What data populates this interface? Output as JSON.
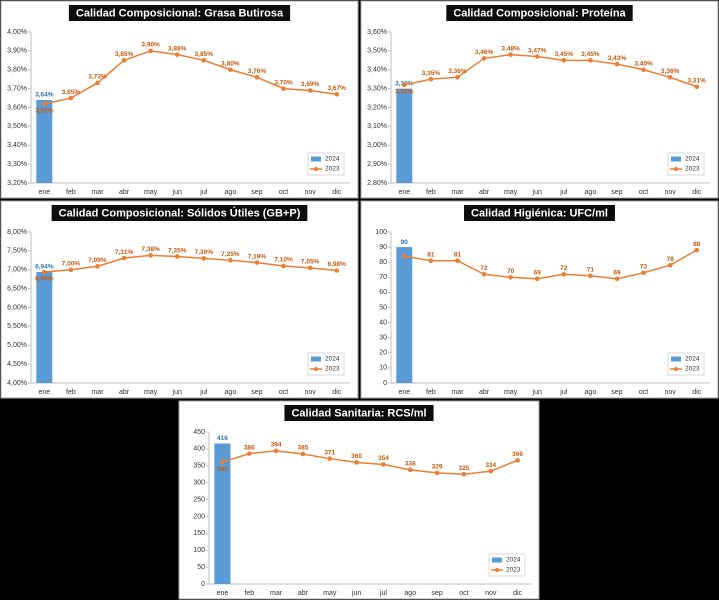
{
  "chart_data": [
    {
      "type": "combo",
      "title": "Calidad Composicional: Grasa Butirosa",
      "categories": [
        "ene",
        "feb",
        "mar",
        "abr",
        "may",
        "jun",
        "jul",
        "ago",
        "sep",
        "oct",
        "nov",
        "dic"
      ],
      "series": [
        {
          "name": "2024",
          "kind": "bar",
          "color": "#5b9bd5",
          "label_color": "#2e75b6",
          "values": [
            3.64,
            null,
            null,
            null,
            null,
            null,
            null,
            null,
            null,
            null,
            null,
            null
          ],
          "value_labels": [
            "3,64%",
            null,
            null,
            null,
            null,
            null,
            null,
            null,
            null,
            null,
            null,
            null
          ]
        },
        {
          "name": "2023",
          "kind": "line",
          "color": "#ed7d31",
          "label_color": "#c55a11",
          "values": [
            3.62,
            3.65,
            3.73,
            3.85,
            3.9,
            3.88,
            3.85,
            3.8,
            3.76,
            3.7,
            3.69,
            3.67
          ],
          "value_labels": [
            "3,62%",
            "3,65%",
            "3,73%",
            "3,85%",
            "3,90%",
            "3,88%",
            "3,85%",
            "3,80%",
            "3,76%",
            "3,70%",
            "3,69%",
            "3,67%"
          ]
        }
      ],
      "ylim": [
        3.2,
        4.0
      ],
      "yticks": [
        {
          "value": 3.2,
          "label": "3,20%"
        },
        {
          "value": 3.3,
          "label": "3,30%"
        },
        {
          "value": 3.4,
          "label": "3,40%"
        },
        {
          "value": 3.5,
          "label": "3,50%"
        },
        {
          "value": 3.6,
          "label": "3,60%"
        },
        {
          "value": 3.7,
          "label": "3,70%"
        },
        {
          "value": 3.8,
          "label": "3,80%"
        },
        {
          "value": 3.9,
          "label": "3,90%"
        },
        {
          "value": 4.0,
          "label": "4,00%"
        }
      ],
      "legend": "lower right"
    },
    {
      "type": "combo",
      "title": "Calidad Composicional: Proteína",
      "categories": [
        "ene",
        "feb",
        "mar",
        "abr",
        "may",
        "jun",
        "jul",
        "ago",
        "sep",
        "oct",
        "nov",
        "dic"
      ],
      "series": [
        {
          "name": "2024",
          "kind": "bar",
          "color": "#5b9bd5",
          "label_color": "#2e75b6",
          "values": [
            3.3,
            null,
            null,
            null,
            null,
            null,
            null,
            null,
            null,
            null,
            null,
            null
          ],
          "value_labels": [
            "3,30%",
            null,
            null,
            null,
            null,
            null,
            null,
            null,
            null,
            null,
            null,
            null
          ]
        },
        {
          "name": "2023",
          "kind": "line",
          "color": "#ed7d31",
          "label_color": "#c55a11",
          "values": [
            3.32,
            3.35,
            3.36,
            3.46,
            3.48,
            3.47,
            3.45,
            3.45,
            3.43,
            3.4,
            3.36,
            3.31
          ],
          "value_labels": [
            "3,32%",
            "3,35%",
            "3,36%",
            "3,46%",
            "3,48%",
            "3,47%",
            "3,45%",
            "3,45%",
            "3,43%",
            "3,40%",
            "3,36%",
            "3,31%"
          ]
        }
      ],
      "ylim": [
        2.8,
        3.6
      ],
      "yticks": [
        {
          "value": 2.8,
          "label": "2,80%"
        },
        {
          "value": 2.9,
          "label": "2,90%"
        },
        {
          "value": 3.0,
          "label": "3,00%"
        },
        {
          "value": 3.1,
          "label": "3,10%"
        },
        {
          "value": 3.2,
          "label": "3,20%"
        },
        {
          "value": 3.3,
          "label": "3,30%"
        },
        {
          "value": 3.4,
          "label": "3,40%"
        },
        {
          "value": 3.5,
          "label": "3,50%"
        },
        {
          "value": 3.6,
          "label": "3,60%"
        }
      ],
      "legend": "lower right"
    },
    {
      "type": "combo",
      "title": "Calidad Composicional: Sólidos Útiles (GB+P)",
      "categories": [
        "ene",
        "feb",
        "mar",
        "abr",
        "may",
        "jun",
        "jul",
        "ago",
        "sep",
        "oct",
        "nov",
        "dic"
      ],
      "series": [
        {
          "name": "2024",
          "kind": "bar",
          "color": "#5b9bd5",
          "label_color": "#2e75b6",
          "values": [
            6.94,
            null,
            null,
            null,
            null,
            null,
            null,
            null,
            null,
            null,
            null,
            null
          ],
          "value_labels": [
            "6,94%",
            null,
            null,
            null,
            null,
            null,
            null,
            null,
            null,
            null,
            null,
            null
          ]
        },
        {
          "name": "2023",
          "kind": "line",
          "color": "#ed7d31",
          "label_color": "#c55a11",
          "values": [
            6.94,
            7.0,
            7.09,
            7.31,
            7.38,
            7.35,
            7.3,
            7.25,
            7.19,
            7.1,
            7.05,
            6.98
          ],
          "value_labels": [
            "6,94%",
            "7,00%",
            "7,09%",
            "7,31%",
            "7,38%",
            "7,35%",
            "7,30%",
            "7,25%",
            "7,19%",
            "7,10%",
            "7,05%",
            "6,98%"
          ]
        }
      ],
      "ylim": [
        4.0,
        8.0
      ],
      "yticks": [
        {
          "value": 4.0,
          "label": "4,00%"
        },
        {
          "value": 4.5,
          "label": "4,50%"
        },
        {
          "value": 5.0,
          "label": "5,00%"
        },
        {
          "value": 5.5,
          "label": "5,50%"
        },
        {
          "value": 6.0,
          "label": "6,00%"
        },
        {
          "value": 6.5,
          "label": "6,50%"
        },
        {
          "value": 7.0,
          "label": "7,00%"
        },
        {
          "value": 7.5,
          "label": "7,50%"
        },
        {
          "value": 8.0,
          "label": "8,00%"
        }
      ],
      "legend": "lower right"
    },
    {
      "type": "combo",
      "title": "Calidad Higiénica: UFC/ml",
      "categories": [
        "ene",
        "feb",
        "mar",
        "abr",
        "may",
        "jun",
        "jul",
        "ago",
        "sep",
        "oct",
        "nov",
        "dic"
      ],
      "series": [
        {
          "name": "2024",
          "kind": "bar",
          "color": "#5b9bd5",
          "label_color": "#2e75b6",
          "values": [
            90,
            null,
            null,
            null,
            null,
            null,
            null,
            null,
            null,
            null,
            null,
            null
          ]
        },
        {
          "name": "2023",
          "kind": "line",
          "color": "#ed7d31",
          "label_color": "#c55a11",
          "values": [
            84,
            81,
            81,
            72,
            70,
            69,
            72,
            71,
            69,
            73,
            78,
            88
          ],
          "value_labels": [
            null,
            "81",
            "81",
            "72",
            "70",
            "69",
            "72",
            "71",
            "69",
            "73",
            "78",
            "88"
          ]
        }
      ],
      "ylim": [
        0,
        100
      ],
      "yticks": [
        0,
        10,
        20,
        30,
        40,
        50,
        60,
        70,
        80,
        90,
        100
      ],
      "legend": "lower right"
    },
    {
      "type": "combo",
      "title": "Calidad Sanitaria: RCS/ml",
      "categories": [
        "ene",
        "feb",
        "mar",
        "abr",
        "may",
        "jun",
        "jul",
        "ago",
        "sep",
        "oct",
        "nov",
        "dic"
      ],
      "series": [
        {
          "name": "2024",
          "kind": "bar",
          "color": "#5b9bd5",
          "label_color": "#2e75b6",
          "values": [
            416,
            null,
            null,
            null,
            null,
            null,
            null,
            null,
            null,
            null,
            null,
            null
          ]
        },
        {
          "name": "2023",
          "kind": "line",
          "color": "#ed7d31",
          "label_color": "#c55a11",
          "values": [
            361,
            386,
            394,
            385,
            371,
            360,
            354,
            338,
            329,
            325,
            334,
            366
          ]
        }
      ],
      "ylim": [
        0,
        450
      ],
      "yticks": [
        0,
        50,
        100,
        150,
        200,
        250,
        300,
        350,
        400,
        450
      ],
      "legend": "lower right"
    }
  ]
}
